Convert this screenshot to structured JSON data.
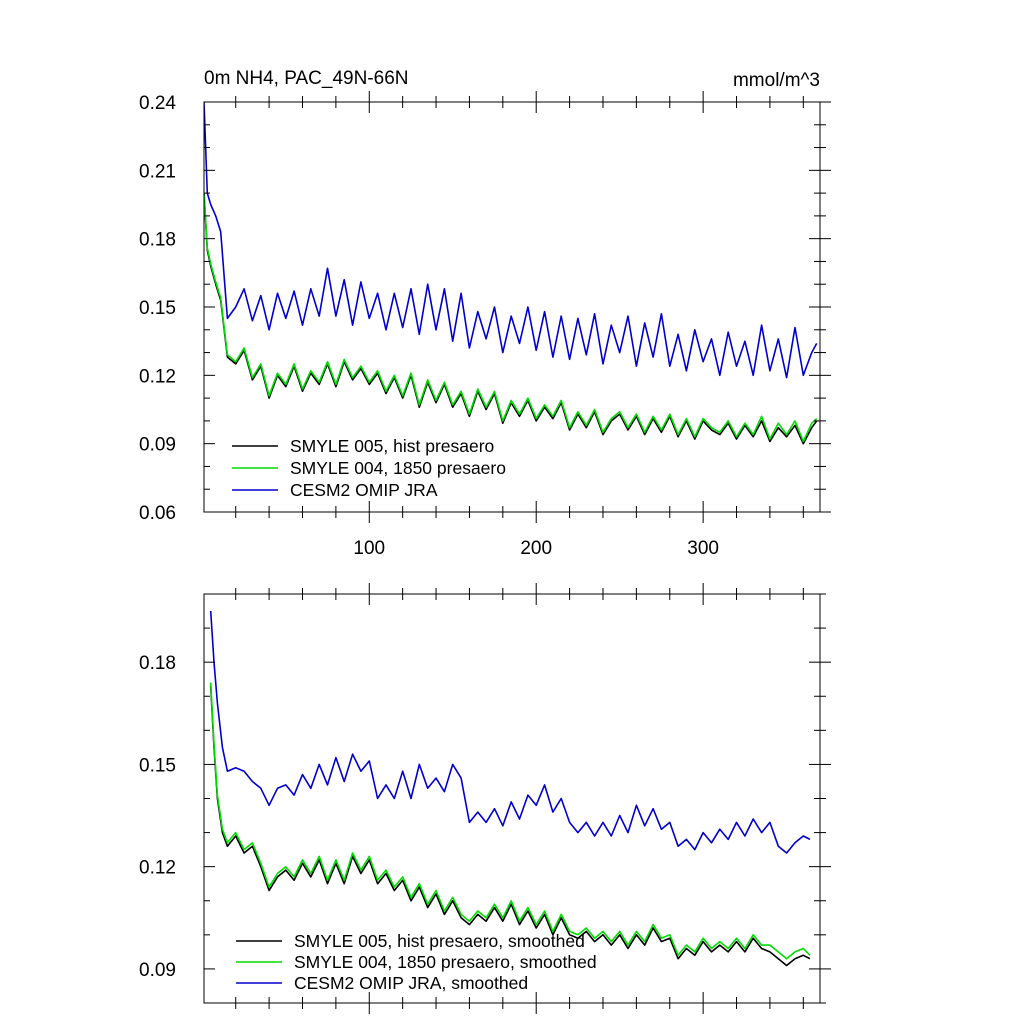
{
  "chart_data": [
    {
      "type": "line",
      "title": "0m NH4, PAC_49N-66N",
      "units_label": "mmol/m^3",
      "xlim": [
        1,
        370
      ],
      "ylim": [
        0.06,
        0.24
      ],
      "xticks": [
        100,
        200,
        300
      ],
      "xtick_labels": [
        "100",
        "200",
        "300"
      ],
      "yticks": [
        0.06,
        0.09,
        0.12,
        0.15,
        0.18,
        0.21,
        0.24
      ],
      "ytick_labels": [
        "0.06",
        "0.09",
        "0.12",
        "0.15",
        "0.18",
        "0.21",
        "0.24"
      ],
      "legend_position": "bottom-left",
      "series": [
        {
          "name": "SMYLE 005, hist presaero",
          "color": "#000000",
          "x": [
            1,
            3,
            5,
            8,
            11,
            15,
            20,
            25,
            30,
            35,
            40,
            45,
            50,
            55,
            60,
            65,
            70,
            75,
            80,
            85,
            90,
            95,
            100,
            105,
            110,
            115,
            120,
            125,
            130,
            135,
            140,
            145,
            150,
            155,
            160,
            165,
            170,
            175,
            180,
            185,
            190,
            195,
            200,
            205,
            210,
            215,
            220,
            225,
            230,
            235,
            240,
            245,
            250,
            255,
            260,
            265,
            270,
            275,
            280,
            285,
            290,
            295,
            300,
            305,
            310,
            315,
            320,
            325,
            330,
            335,
            340,
            345,
            350,
            355,
            360,
            365,
            368
          ],
          "y": [
            0.2,
            0.175,
            0.168,
            0.16,
            0.153,
            0.128,
            0.125,
            0.131,
            0.118,
            0.124,
            0.11,
            0.12,
            0.115,
            0.124,
            0.113,
            0.121,
            0.116,
            0.125,
            0.115,
            0.126,
            0.118,
            0.123,
            0.116,
            0.121,
            0.112,
            0.119,
            0.11,
            0.12,
            0.106,
            0.117,
            0.108,
            0.116,
            0.106,
            0.112,
            0.102,
            0.113,
            0.105,
            0.112,
            0.099,
            0.108,
            0.102,
            0.109,
            0.1,
            0.106,
            0.101,
            0.108,
            0.096,
            0.103,
            0.097,
            0.104,
            0.094,
            0.1,
            0.103,
            0.096,
            0.102,
            0.094,
            0.101,
            0.095,
            0.102,
            0.093,
            0.1,
            0.092,
            0.1,
            0.096,
            0.094,
            0.099,
            0.092,
            0.098,
            0.093,
            0.1,
            0.091,
            0.097,
            0.093,
            0.098,
            0.09,
            0.097,
            0.1
          ]
        },
        {
          "name": "SMYLE 004, 1850 presaero",
          "color": "#00dd00",
          "x": [
            1,
            3,
            5,
            8,
            11,
            15,
            20,
            25,
            30,
            35,
            40,
            45,
            50,
            55,
            60,
            65,
            70,
            75,
            80,
            85,
            90,
            95,
            100,
            105,
            110,
            115,
            120,
            125,
            130,
            135,
            140,
            145,
            150,
            155,
            160,
            165,
            170,
            175,
            180,
            185,
            190,
            195,
            200,
            205,
            210,
            215,
            220,
            225,
            230,
            235,
            240,
            245,
            250,
            255,
            260,
            265,
            270,
            275,
            280,
            285,
            290,
            295,
            300,
            305,
            310,
            315,
            320,
            325,
            330,
            335,
            340,
            345,
            350,
            355,
            360,
            365,
            368
          ],
          "y": [
            0.2,
            0.176,
            0.169,
            0.161,
            0.154,
            0.129,
            0.126,
            0.132,
            0.119,
            0.125,
            0.111,
            0.121,
            0.116,
            0.125,
            0.114,
            0.122,
            0.117,
            0.126,
            0.116,
            0.127,
            0.119,
            0.124,
            0.117,
            0.122,
            0.113,
            0.12,
            0.111,
            0.121,
            0.107,
            0.118,
            0.109,
            0.117,
            0.107,
            0.113,
            0.103,
            0.114,
            0.106,
            0.113,
            0.1,
            0.109,
            0.103,
            0.11,
            0.101,
            0.107,
            0.102,
            0.109,
            0.097,
            0.104,
            0.098,
            0.105,
            0.095,
            0.101,
            0.104,
            0.097,
            0.103,
            0.095,
            0.102,
            0.096,
            0.103,
            0.094,
            0.101,
            0.093,
            0.101,
            0.097,
            0.095,
            0.1,
            0.093,
            0.099,
            0.094,
            0.102,
            0.092,
            0.099,
            0.094,
            0.1,
            0.091,
            0.099,
            0.101
          ]
        },
        {
          "name": "CESM2 OMIP JRA",
          "color": "#0000cc",
          "x": [
            1,
            3,
            5,
            8,
            11,
            15,
            20,
            25,
            30,
            35,
            40,
            45,
            50,
            55,
            60,
            65,
            70,
            75,
            80,
            85,
            90,
            95,
            100,
            105,
            110,
            115,
            120,
            125,
            130,
            135,
            140,
            145,
            150,
            155,
            160,
            165,
            170,
            175,
            180,
            185,
            190,
            195,
            200,
            205,
            210,
            215,
            220,
            225,
            230,
            235,
            240,
            245,
            250,
            255,
            260,
            265,
            270,
            275,
            280,
            285,
            290,
            295,
            300,
            305,
            310,
            315,
            320,
            325,
            330,
            335,
            340,
            345,
            350,
            355,
            360,
            365,
            368
          ],
          "y": [
            0.24,
            0.2,
            0.195,
            0.19,
            0.183,
            0.145,
            0.15,
            0.158,
            0.144,
            0.155,
            0.14,
            0.156,
            0.145,
            0.157,
            0.142,
            0.158,
            0.146,
            0.167,
            0.146,
            0.162,
            0.142,
            0.161,
            0.145,
            0.156,
            0.14,
            0.156,
            0.141,
            0.158,
            0.138,
            0.16,
            0.14,
            0.158,
            0.135,
            0.156,
            0.132,
            0.148,
            0.136,
            0.15,
            0.13,
            0.146,
            0.134,
            0.15,
            0.131,
            0.148,
            0.128,
            0.146,
            0.127,
            0.145,
            0.129,
            0.147,
            0.125,
            0.142,
            0.13,
            0.146,
            0.124,
            0.143,
            0.128,
            0.147,
            0.124,
            0.138,
            0.122,
            0.14,
            0.126,
            0.136,
            0.12,
            0.139,
            0.124,
            0.135,
            0.12,
            0.142,
            0.122,
            0.136,
            0.119,
            0.141,
            0.12,
            0.13,
            0.134
          ]
        }
      ]
    },
    {
      "type": "line",
      "xlim": [
        1,
        370
      ],
      "ylim": [
        0.08,
        0.2
      ],
      "xticks": [
        100,
        200,
        300
      ],
      "yticks": [
        0.09,
        0.12,
        0.15,
        0.18
      ],
      "ytick_labels": [
        "0.09",
        "0.12",
        "0.15",
        "0.18"
      ],
      "legend_position": "bottom-left",
      "series": [
        {
          "name": "SMYLE 005, hist presaero, smoothed",
          "color": "#000000",
          "x": [
            5,
            7,
            9,
            12,
            15,
            20,
            25,
            30,
            35,
            40,
            45,
            50,
            55,
            60,
            65,
            70,
            75,
            80,
            85,
            90,
            95,
            100,
            105,
            110,
            115,
            120,
            125,
            130,
            135,
            140,
            145,
            150,
            155,
            160,
            165,
            170,
            175,
            180,
            185,
            190,
            195,
            200,
            205,
            210,
            215,
            220,
            225,
            230,
            235,
            240,
            245,
            250,
            255,
            260,
            265,
            270,
            275,
            280,
            285,
            290,
            295,
            300,
            305,
            310,
            315,
            320,
            325,
            330,
            335,
            340,
            345,
            350,
            355,
            360,
            364
          ],
          "y": [
            0.173,
            0.155,
            0.14,
            0.13,
            0.126,
            0.129,
            0.124,
            0.126,
            0.12,
            0.113,
            0.117,
            0.119,
            0.116,
            0.121,
            0.117,
            0.122,
            0.115,
            0.121,
            0.115,
            0.123,
            0.118,
            0.122,
            0.115,
            0.118,
            0.113,
            0.116,
            0.11,
            0.114,
            0.108,
            0.112,
            0.106,
            0.11,
            0.105,
            0.103,
            0.106,
            0.104,
            0.108,
            0.104,
            0.109,
            0.103,
            0.107,
            0.102,
            0.106,
            0.1,
            0.105,
            0.1,
            0.099,
            0.101,
            0.098,
            0.1,
            0.097,
            0.1,
            0.096,
            0.1,
            0.097,
            0.102,
            0.098,
            0.099,
            0.093,
            0.096,
            0.094,
            0.098,
            0.095,
            0.097,
            0.095,
            0.098,
            0.095,
            0.099,
            0.096,
            0.095,
            0.093,
            0.091,
            0.093,
            0.094,
            0.093
          ]
        },
        {
          "name": "SMYLE 004, 1850 presaero, smoothed",
          "color": "#00dd00",
          "x": [
            5,
            7,
            9,
            12,
            15,
            20,
            25,
            30,
            35,
            40,
            45,
            50,
            55,
            60,
            65,
            70,
            75,
            80,
            85,
            90,
            95,
            100,
            105,
            110,
            115,
            120,
            125,
            130,
            135,
            140,
            145,
            150,
            155,
            160,
            165,
            170,
            175,
            180,
            185,
            190,
            195,
            200,
            205,
            210,
            215,
            220,
            225,
            230,
            235,
            240,
            245,
            250,
            255,
            260,
            265,
            270,
            275,
            280,
            285,
            290,
            295,
            300,
            305,
            310,
            315,
            320,
            325,
            330,
            335,
            340,
            345,
            350,
            355,
            360,
            364
          ],
          "y": [
            0.174,
            0.156,
            0.141,
            0.131,
            0.127,
            0.13,
            0.125,
            0.127,
            0.121,
            0.114,
            0.118,
            0.12,
            0.117,
            0.122,
            0.118,
            0.123,
            0.116,
            0.122,
            0.116,
            0.124,
            0.119,
            0.123,
            0.116,
            0.119,
            0.114,
            0.117,
            0.111,
            0.115,
            0.109,
            0.113,
            0.107,
            0.111,
            0.106,
            0.104,
            0.107,
            0.105,
            0.109,
            0.105,
            0.11,
            0.104,
            0.108,
            0.103,
            0.107,
            0.101,
            0.106,
            0.101,
            0.1,
            0.102,
            0.099,
            0.101,
            0.098,
            0.101,
            0.097,
            0.101,
            0.098,
            0.103,
            0.099,
            0.1,
            0.094,
            0.097,
            0.095,
            0.099,
            0.096,
            0.098,
            0.096,
            0.099,
            0.096,
            0.1,
            0.097,
            0.097,
            0.095,
            0.093,
            0.095,
            0.096,
            0.094
          ]
        },
        {
          "name": "CESM2 OMIP JRA, smoothed",
          "color": "#0000cc",
          "x": [
            5,
            7,
            9,
            12,
            15,
            20,
            25,
            30,
            35,
            40,
            45,
            50,
            55,
            60,
            65,
            70,
            75,
            80,
            85,
            90,
            95,
            100,
            105,
            110,
            115,
            120,
            125,
            130,
            135,
            140,
            145,
            150,
            155,
            160,
            165,
            170,
            175,
            180,
            185,
            190,
            195,
            200,
            205,
            210,
            215,
            220,
            225,
            230,
            235,
            240,
            245,
            250,
            255,
            260,
            265,
            270,
            275,
            280,
            285,
            290,
            295,
            300,
            305,
            310,
            315,
            320,
            325,
            330,
            335,
            340,
            345,
            350,
            355,
            360,
            364
          ],
          "y": [
            0.195,
            0.18,
            0.168,
            0.155,
            0.148,
            0.149,
            0.148,
            0.145,
            0.143,
            0.138,
            0.143,
            0.144,
            0.141,
            0.147,
            0.143,
            0.15,
            0.144,
            0.152,
            0.145,
            0.153,
            0.148,
            0.151,
            0.14,
            0.144,
            0.14,
            0.148,
            0.14,
            0.15,
            0.143,
            0.146,
            0.142,
            0.15,
            0.146,
            0.133,
            0.136,
            0.133,
            0.137,
            0.132,
            0.139,
            0.134,
            0.141,
            0.138,
            0.144,
            0.136,
            0.14,
            0.133,
            0.13,
            0.133,
            0.129,
            0.133,
            0.129,
            0.135,
            0.13,
            0.138,
            0.132,
            0.137,
            0.131,
            0.133,
            0.126,
            0.128,
            0.125,
            0.13,
            0.127,
            0.131,
            0.128,
            0.133,
            0.129,
            0.134,
            0.13,
            0.133,
            0.126,
            0.124,
            0.127,
            0.129,
            0.128
          ]
        }
      ]
    }
  ]
}
